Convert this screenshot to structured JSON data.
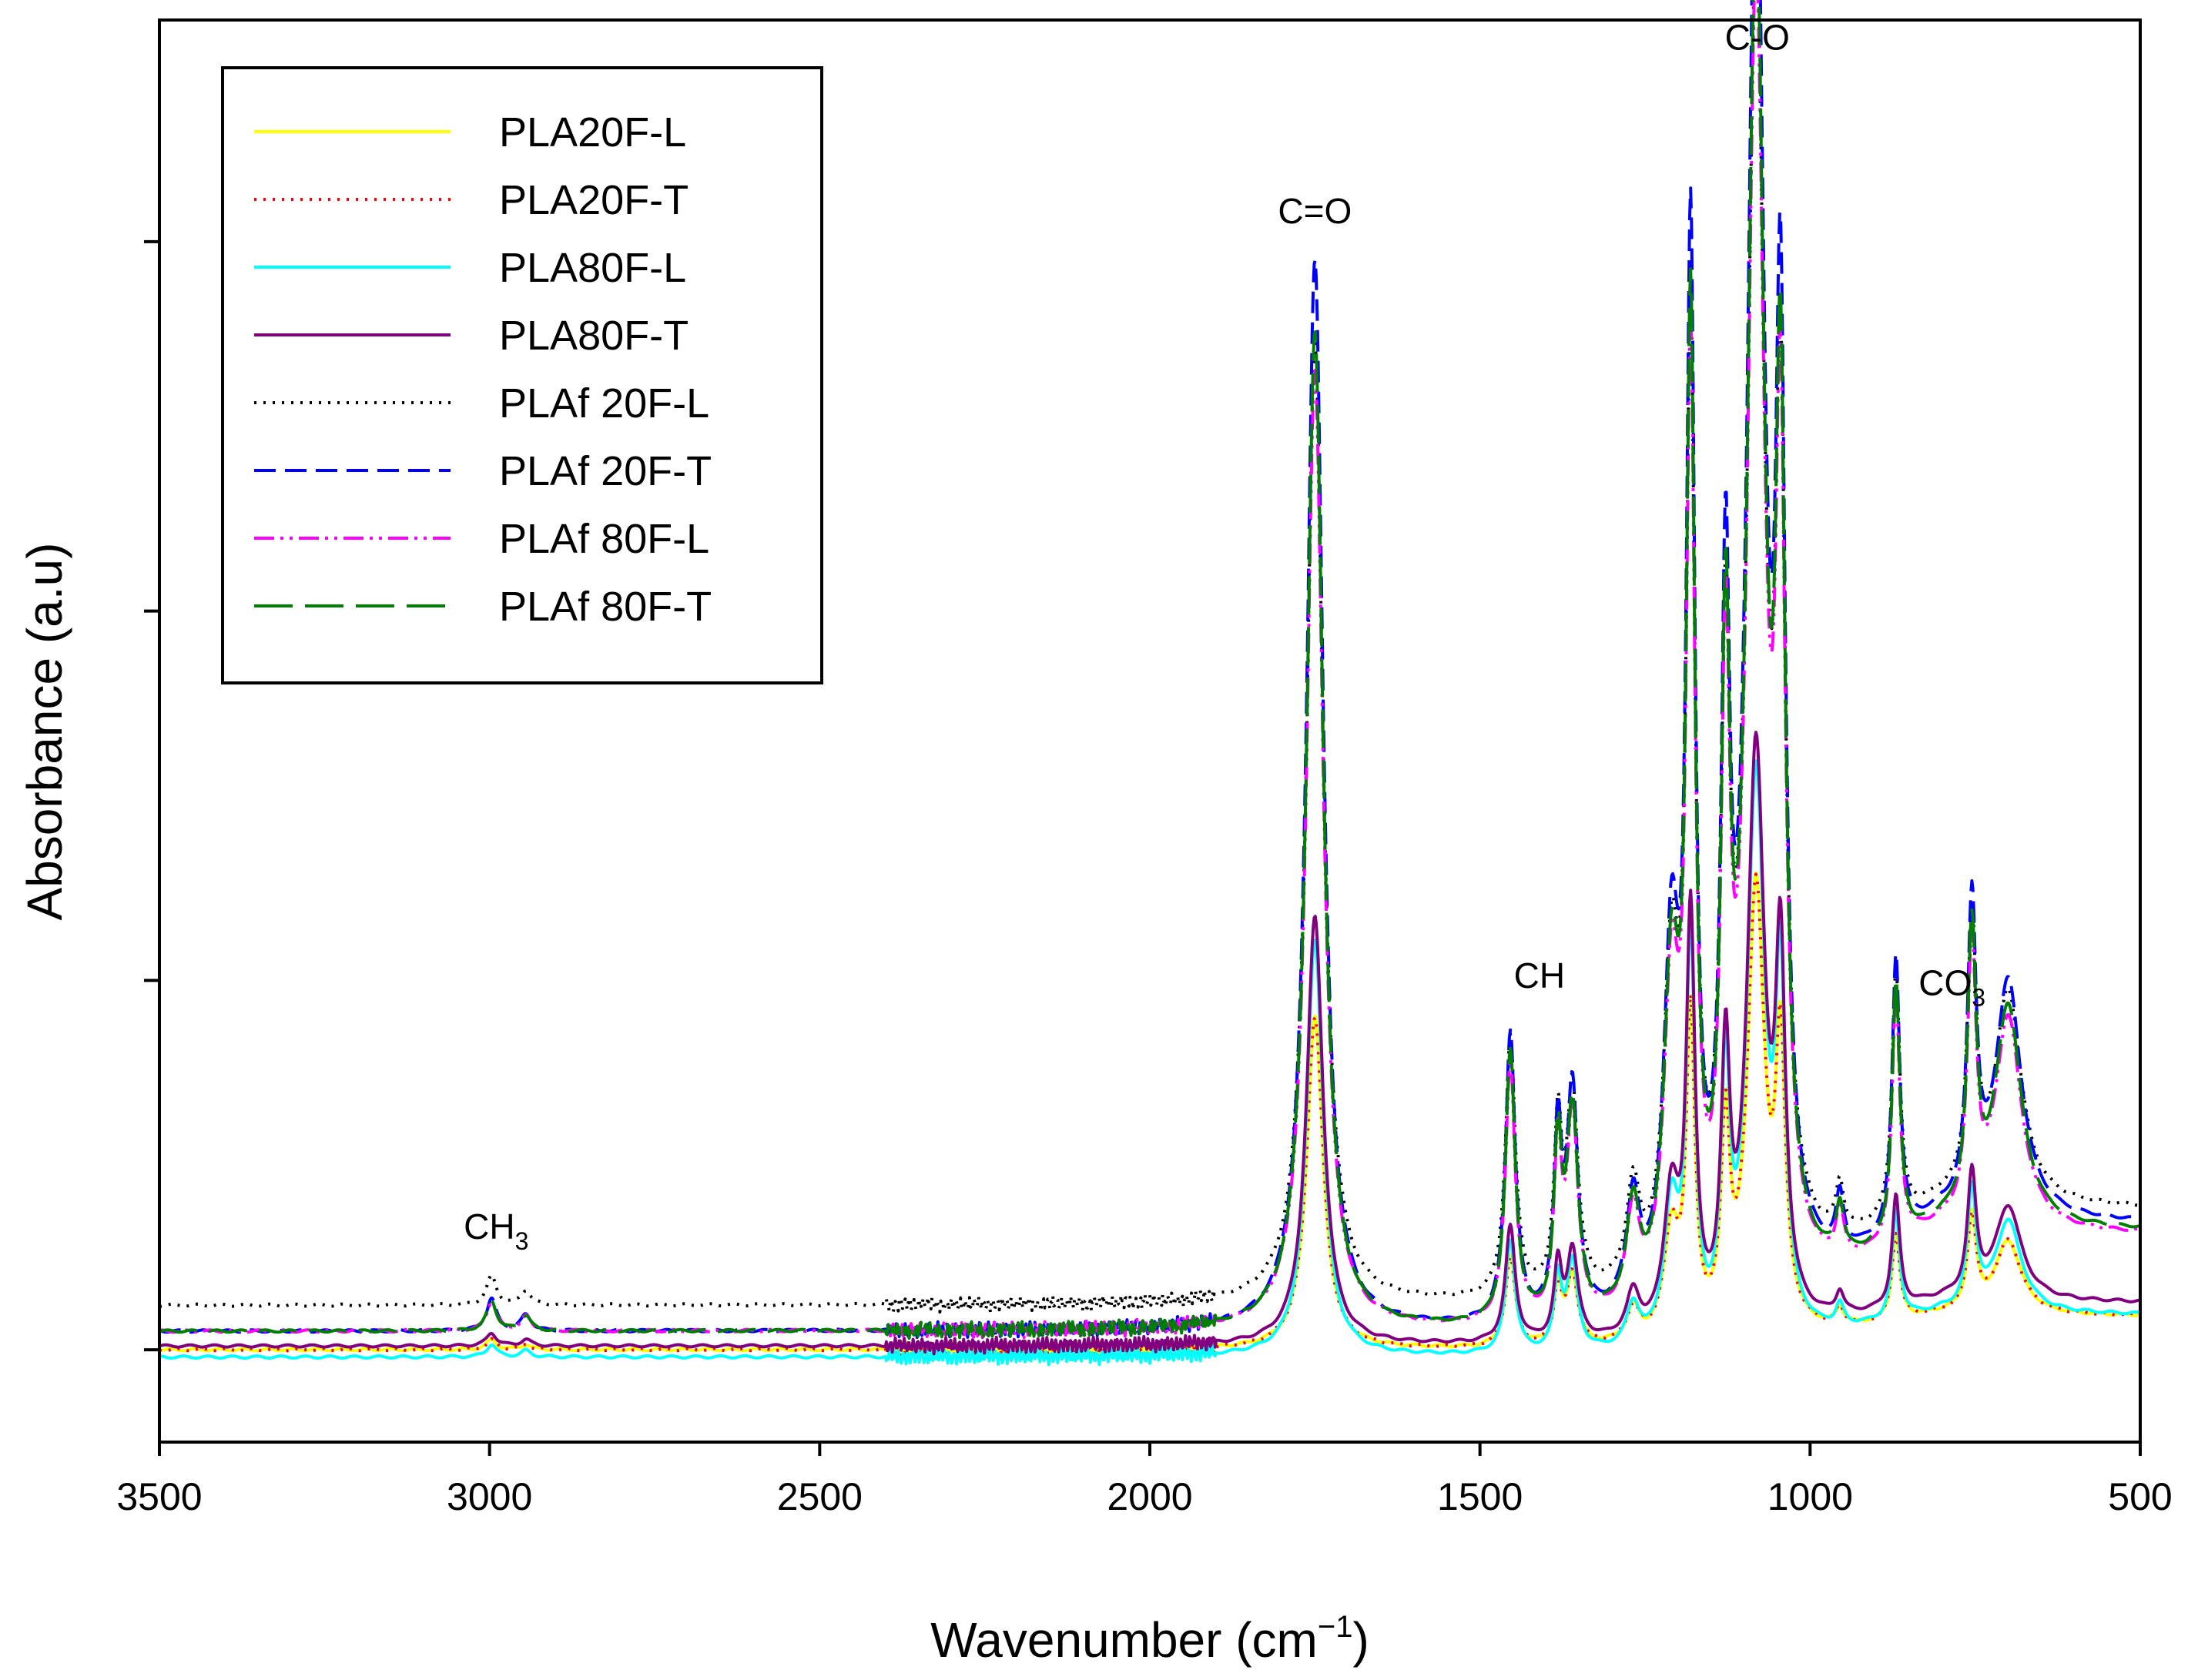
{
  "chart_data": {
    "type": "line",
    "title": "",
    "xlabel": "Wavenumber (cm",
    "xlabel_sup": "−1",
    "xlabel_suffix": ")",
    "ylabel": "Absorbance (a.u)",
    "xlim": [
      3500,
      500
    ],
    "ylim": [
      -0.25,
      3.6
    ],
    "x_ticks": [
      3500,
      3000,
      2500,
      2000,
      1500,
      1000,
      500
    ],
    "x_tick_labels": [
      "3500",
      "3000",
      "2500",
      "2000",
      "1500",
      "1000",
      "500"
    ],
    "y_ticks": [
      0,
      1,
      2,
      3,
      4
    ],
    "grid": false,
    "legend_position": "top-left",
    "annotations": [
      {
        "text": "C=O",
        "sub": "",
        "x": 1750,
        "y": 3.05
      },
      {
        "text": "C-O",
        "sub": "",
        "x": 1080,
        "y": 3.52
      },
      {
        "text": "CH",
        "sub": "",
        "x": 1410,
        "y": 0.98
      },
      {
        "text": "CH",
        "sub": "3",
        "x": 2990,
        "y": 0.3
      },
      {
        "text": "CO",
        "sub": "3",
        "x": 785,
        "y": 0.96
      }
    ],
    "series": [
      {
        "name": "PLA20F-L",
        "color": "#ffff00",
        "dash": "",
        "offset": 0.0,
        "scale": 0.9
      },
      {
        "name": "PLA20F-T",
        "color": "#ff0000",
        "dash": "3,9",
        "offset": 0.0,
        "scale": 0.9
      },
      {
        "name": "PLA80F-L",
        "color": "#00ffff",
        "dash": "",
        "offset": -0.02,
        "scale": 1.13
      },
      {
        "name": "PLA80F-T",
        "color": "#800080",
        "dash": "",
        "offset": 0.01,
        "scale": 1.16
      },
      {
        "name": "PLAf 20F-L",
        "color": "#000000",
        "dash": "3,9",
        "offset": 0.12,
        "scale": 2.6
      },
      {
        "name": "PLAf 20F-T",
        "color": "#0000ff",
        "dash": "28,12",
        "offset": 0.05,
        "scale": 2.9
      },
      {
        "name": "PLAf 80F-L",
        "color": "#ff00ff",
        "dash": "26,8,4,8,4,8",
        "offset": 0.05,
        "scale": 2.6
      },
      {
        "name": "PLAf 80F-T",
        "color": "#008000",
        "dash": "50,16",
        "offset": 0.05,
        "scale": 2.7
      }
    ],
    "peaks": [
      {
        "x": 2997,
        "h": 0.03,
        "w": 9
      },
      {
        "x": 2945,
        "h": 0.015,
        "w": 9
      },
      {
        "x": 1750,
        "h": 1.0,
        "w": 15
      },
      {
        "x": 1454,
        "h": 0.27,
        "w": 9
      },
      {
        "x": 1382,
        "h": 0.17,
        "w": 7
      },
      {
        "x": 1360,
        "h": 0.21,
        "w": 10
      },
      {
        "x": 1268,
        "h": 0.1,
        "w": 12
      },
      {
        "x": 1210,
        "h": 0.32,
        "w": 14
      },
      {
        "x": 1181,
        "h": 0.95,
        "w": 8
      },
      {
        "x": 1128,
        "h": 0.6,
        "w": 8
      },
      {
        "x": 1082,
        "h": 1.35,
        "w": 16
      },
      {
        "x": 1045,
        "h": 0.8,
        "w": 9
      },
      {
        "x": 955,
        "h": 0.05,
        "w": 7
      },
      {
        "x": 870,
        "h": 0.26,
        "w": 7
      },
      {
        "x": 755,
        "h": 0.28,
        "w": 8
      },
      {
        "x": 700,
        "h": 0.22,
        "w": 24
      }
    ]
  }
}
